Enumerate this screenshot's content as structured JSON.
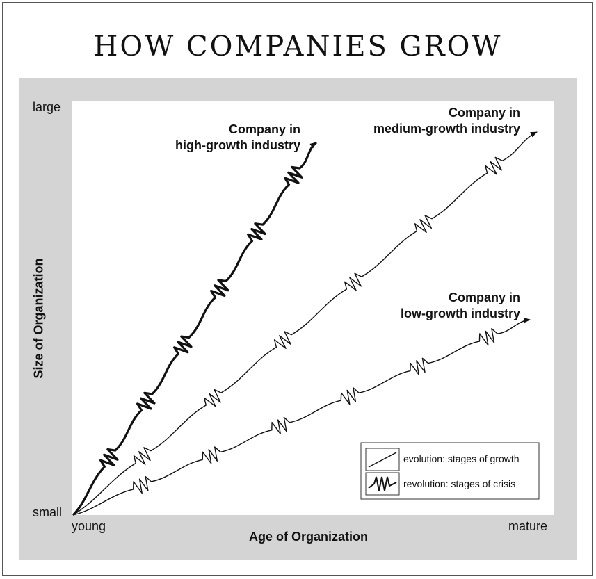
{
  "title": "HOW COMPANIES GROW",
  "axes": {
    "y_title": "Size of Organization",
    "x_title": "Age of Organization",
    "y_top": "large",
    "y_bottom": "small",
    "x_left": "young",
    "x_right": "mature"
  },
  "series": [
    {
      "id": "high",
      "label_line1": "Company in",
      "label_line2": "high-growth industry",
      "crises": 6
    },
    {
      "id": "medium",
      "label_line1": "Company in",
      "label_line2": "medium-growth industry",
      "crises": 6
    },
    {
      "id": "low",
      "label_line1": "Company in",
      "label_line2": "low-growth industry",
      "crises": 6
    }
  ],
  "legend": {
    "evolution": "evolution:  stages of growth",
    "revolution": "revolution:  stages of crisis"
  },
  "colors": {
    "plot_background": "#d4d4d4",
    "line": "#111111"
  }
}
